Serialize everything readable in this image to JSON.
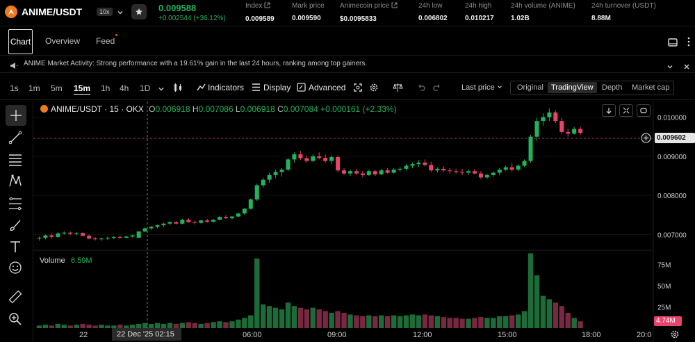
{
  "header": {
    "pair": "ANIME/USDT",
    "leverage": "10x",
    "last_price": "0.009588",
    "change": "+0.002544 (+36.12%)",
    "stats": [
      {
        "label": "Index",
        "value": "0.009589",
        "ext": true
      },
      {
        "label": "Mark price",
        "value": "0.009590",
        "ext": false
      },
      {
        "label": "Animecoin price",
        "value": "$0.0095833",
        "ext": true
      },
      {
        "label": "24h low",
        "value": "0.006802",
        "ext": false
      },
      {
        "label": "24h high",
        "value": "0.010217",
        "ext": false
      },
      {
        "label": "24h volume (ANIME)",
        "value": "1.02B",
        "ext": false
      },
      {
        "label": "24h turnover (USDT)",
        "value": "8.88M",
        "ext": false
      }
    ],
    "accent_up": "#21b35b",
    "accent_down": "#e8436b"
  },
  "nav": {
    "tabs": [
      {
        "label": "Chart"
      },
      {
        "label": "Overview"
      },
      {
        "label": "Feed"
      }
    ]
  },
  "announcement": {
    "text": "ANIME Market Activity: Strong performance with a 19.61% gain in the last 24 hours, ranking among top gainers."
  },
  "toolbar": {
    "timeframes": [
      "1s",
      "1m",
      "5m",
      "15m",
      "1h",
      "4h",
      "1D"
    ],
    "active_timeframe": "15m",
    "indicators": "Indicators",
    "display": "Display",
    "advanced": "Advanced",
    "price_type": "Last price",
    "views": [
      "Original",
      "TradingView",
      "Depth",
      "Market cap"
    ],
    "active_view": "TradingView"
  },
  "chart": {
    "legend": {
      "symbol": "ANIME/USDT · 15 · OKX",
      "o_label": "O",
      "o": "0.006918",
      "h_label": "H",
      "h": "0.007086",
      "l_label": "L",
      "l": "0.006918",
      "c_label": "C",
      "c": "0.007084",
      "chg": "+0.000161 (+2.33%)"
    },
    "price_axis": [
      "0.010000",
      "0.009000",
      "0.008000",
      "0.007000"
    ],
    "current_price_tag": "0.009602",
    "volume_label": "Volume",
    "volume_value": "6.59M",
    "volume_axis": [
      "75M",
      "50M",
      "25M"
    ],
    "volume_tag": "4.74M",
    "time_axis": [
      "22",
      "06:00",
      "09:00",
      "12:00",
      "15:00",
      "18:00",
      "20:0"
    ],
    "crosshair_time": "22 Dec '25   02:15"
  },
  "chart_data": {
    "type": "candlestick",
    "title": "ANIME/USDT · 15 · OKX",
    "xlabel": "",
    "ylabel": "",
    "ylim": [
      0.0066,
      0.0104
    ],
    "volume_ylim": [
      0,
      90
    ],
    "candles": [
      [
        0.0069,
        0.00695,
        0.00685,
        0.00692,
        3
      ],
      [
        0.00692,
        0.007,
        0.00688,
        0.00698,
        4
      ],
      [
        0.00698,
        0.00702,
        0.0069,
        0.00694,
        3
      ],
      [
        0.00694,
        0.00706,
        0.00692,
        0.00703,
        5
      ],
      [
        0.00703,
        0.00708,
        0.007,
        0.00705,
        4
      ],
      [
        0.00705,
        0.00708,
        0.00699,
        0.00702,
        3
      ],
      [
        0.00702,
        0.00707,
        0.00698,
        0.00704,
        4
      ],
      [
        0.00704,
        0.00706,
        0.00695,
        0.00697,
        5
      ],
      [
        0.00697,
        0.007,
        0.00688,
        0.0069,
        4
      ],
      [
        0.0069,
        0.00694,
        0.00685,
        0.00688,
        3
      ],
      [
        0.00688,
        0.00692,
        0.00684,
        0.0069,
        4
      ],
      [
        0.0069,
        0.00695,
        0.00686,
        0.00692,
        3
      ],
      [
        0.00692,
        0.00696,
        0.00688,
        0.00694,
        3
      ],
      [
        0.00694,
        0.00698,
        0.0069,
        0.00692,
        4
      ],
      [
        0.00692,
        0.00697,
        0.0069,
        0.00695,
        3
      ],
      [
        0.00695,
        0.007,
        0.00692,
        0.00698,
        4
      ],
      [
        0.00692,
        0.00709,
        0.00692,
        0.00708,
        5
      ],
      [
        0.00708,
        0.00718,
        0.00706,
        0.00716,
        6
      ],
      [
        0.00716,
        0.00722,
        0.00712,
        0.0072,
        5
      ],
      [
        0.0072,
        0.00726,
        0.00716,
        0.00724,
        6
      ],
      [
        0.00724,
        0.0073,
        0.0072,
        0.00728,
        5
      ],
      [
        0.00728,
        0.00734,
        0.00724,
        0.00732,
        6
      ],
      [
        0.00732,
        0.00734,
        0.00726,
        0.00728,
        5
      ],
      [
        0.00728,
        0.0074,
        0.00726,
        0.00738,
        6
      ],
      [
        0.00738,
        0.00742,
        0.0073,
        0.00732,
        7
      ],
      [
        0.00732,
        0.00736,
        0.00726,
        0.0073,
        6
      ],
      [
        0.0073,
        0.00738,
        0.00728,
        0.00736,
        5
      ],
      [
        0.00736,
        0.0074,
        0.0073,
        0.00733,
        6
      ],
      [
        0.00733,
        0.0074,
        0.0073,
        0.00738,
        7
      ],
      [
        0.00738,
        0.00748,
        0.00736,
        0.00745,
        8
      ],
      [
        0.00745,
        0.0075,
        0.0074,
        0.00742,
        7
      ],
      [
        0.00742,
        0.00748,
        0.00738,
        0.00746,
        8
      ],
      [
        0.00746,
        0.00756,
        0.00744,
        0.00754,
        10
      ],
      [
        0.00754,
        0.00768,
        0.0075,
        0.00766,
        12
      ],
      [
        0.00766,
        0.00792,
        0.00764,
        0.0079,
        15
      ],
      [
        0.0079,
        0.0083,
        0.00786,
        0.00826,
        82
      ],
      [
        0.00826,
        0.00845,
        0.0082,
        0.0084,
        28
      ],
      [
        0.0084,
        0.00858,
        0.00832,
        0.00852,
        26
      ],
      [
        0.00852,
        0.00866,
        0.00844,
        0.0086,
        24
      ],
      [
        0.0086,
        0.0087,
        0.00848,
        0.00866,
        22
      ],
      [
        0.00866,
        0.00895,
        0.00862,
        0.00892,
        30
      ],
      [
        0.00892,
        0.0091,
        0.00884,
        0.00905,
        26
      ],
      [
        0.00905,
        0.00914,
        0.0089,
        0.00895,
        24
      ],
      [
        0.00895,
        0.00902,
        0.00884,
        0.00888,
        22
      ],
      [
        0.00888,
        0.00905,
        0.00886,
        0.009,
        24
      ],
      [
        0.009,
        0.0091,
        0.00892,
        0.00896,
        22
      ],
      [
        0.00896,
        0.00904,
        0.00884,
        0.00888,
        20
      ],
      [
        0.00888,
        0.00902,
        0.0088,
        0.00898,
        18
      ],
      [
        0.00898,
        0.00902,
        0.0086,
        0.00864,
        20
      ],
      [
        0.00864,
        0.0087,
        0.00852,
        0.00856,
        18
      ],
      [
        0.00856,
        0.00866,
        0.0085,
        0.00862,
        16
      ],
      [
        0.00862,
        0.00868,
        0.00852,
        0.00856,
        15
      ],
      [
        0.00856,
        0.00862,
        0.00846,
        0.00852,
        14
      ],
      [
        0.00852,
        0.00866,
        0.0085,
        0.00862,
        15
      ],
      [
        0.00862,
        0.00866,
        0.0085,
        0.00854,
        14
      ],
      [
        0.00854,
        0.00868,
        0.00852,
        0.00864,
        15
      ],
      [
        0.00864,
        0.0087,
        0.00856,
        0.00858,
        14
      ],
      [
        0.00858,
        0.0087,
        0.00856,
        0.00866,
        15
      ],
      [
        0.00866,
        0.00872,
        0.0086,
        0.00868,
        14
      ],
      [
        0.00868,
        0.0088,
        0.00864,
        0.00876,
        15
      ],
      [
        0.00876,
        0.00884,
        0.0087,
        0.0088,
        16
      ],
      [
        0.0088,
        0.0089,
        0.00872,
        0.00884,
        15
      ],
      [
        0.00884,
        0.00892,
        0.00874,
        0.00878,
        16
      ],
      [
        0.00878,
        0.00886,
        0.0086,
        0.00864,
        15
      ],
      [
        0.00864,
        0.00872,
        0.00858,
        0.00868,
        14
      ],
      [
        0.00868,
        0.00874,
        0.0086,
        0.00864,
        13
      ],
      [
        0.00864,
        0.0087,
        0.00856,
        0.00862,
        12
      ],
      [
        0.00862,
        0.00868,
        0.00856,
        0.0086,
        12
      ],
      [
        0.0086,
        0.00868,
        0.00852,
        0.00858,
        11
      ],
      [
        0.00858,
        0.00866,
        0.00852,
        0.00862,
        11
      ],
      [
        0.00862,
        0.00868,
        0.00854,
        0.00856,
        12
      ],
      [
        0.00856,
        0.00862,
        0.00842,
        0.00846,
        13
      ],
      [
        0.00846,
        0.00856,
        0.00842,
        0.00852,
        12
      ],
      [
        0.00852,
        0.00862,
        0.00848,
        0.00858,
        12
      ],
      [
        0.00858,
        0.0087,
        0.00852,
        0.00866,
        14
      ],
      [
        0.00866,
        0.00876,
        0.00862,
        0.00872,
        14
      ],
      [
        0.00872,
        0.00882,
        0.0086,
        0.00866,
        15
      ],
      [
        0.00866,
        0.0088,
        0.00862,
        0.00876,
        16
      ],
      [
        0.00876,
        0.00892,
        0.00872,
        0.00888,
        20
      ],
      [
        0.00888,
        0.00955,
        0.00884,
        0.0095,
        88
      ],
      [
        0.0095,
        0.00998,
        0.0094,
        0.0099,
        62
      ],
      [
        0.0099,
        0.0101,
        0.00978,
        0.01,
        38
      ],
      [
        0.01,
        0.01022,
        0.0099,
        0.01012,
        34
      ],
      [
        0.01012,
        0.01018,
        0.00985,
        0.0099,
        30
      ],
      [
        0.0099,
        0.00998,
        0.00956,
        0.00962,
        26
      ],
      [
        0.00962,
        0.0097,
        0.0095,
        0.00958,
        18
      ],
      [
        0.00958,
        0.00975,
        0.00955,
        0.0097,
        12
      ],
      [
        0.0097,
        0.00976,
        0.00955,
        0.0096,
        8
      ]
    ]
  }
}
